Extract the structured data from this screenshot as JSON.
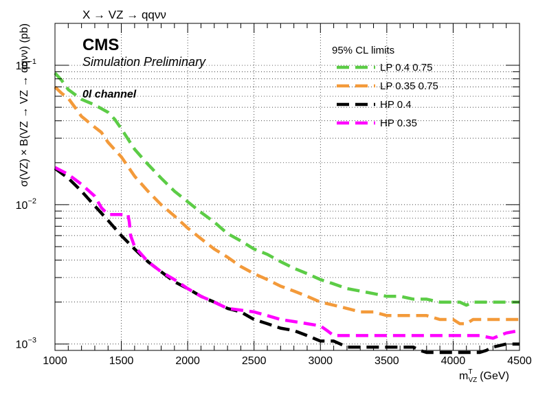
{
  "chart_data": {
    "type": "line",
    "title": "X → VZ → qqνν",
    "xlabel": "m_VZ^T (GeV)",
    "xlabel_main": "m",
    "xlabel_sup": "T",
    "xlabel_sub": "VZ",
    "xlabel_unit": "(GeV)",
    "ylabel": "σ(VZ) × B(VZ → VZ → qqνν) (pb)",
    "xlim": [
      1000,
      4500
    ],
    "ylim": [
      0.0009,
      0.2
    ],
    "yscale": "log",
    "grid": true,
    "x_ticks": [
      1000,
      1500,
      2000,
      2500,
      3000,
      3500,
      4000,
      4500
    ],
    "y_tick_labels": [
      {
        "value": 0.1,
        "mantissa": "10",
        "exp": "−1"
      },
      {
        "value": 0.01,
        "mantissa": "10",
        "exp": "−2"
      },
      {
        "value": 0.001,
        "mantissa": "10",
        "exp": "−3"
      }
    ],
    "annotations": {
      "experiment": "CMS",
      "status": "Simulation Preliminary",
      "channel": "0l channel"
    },
    "legend": {
      "header": "95% CL limits",
      "position": "top-right"
    },
    "series": [
      {
        "name": "LP 0.4 0.75",
        "color": "#5ccc46",
        "x": [
          1000,
          1050,
          1100,
          1200,
          1300,
          1400,
          1450,
          1500,
          1600,
          1700,
          1800,
          1900,
          2000,
          2100,
          2200,
          2300,
          2400,
          2500,
          2600,
          2700,
          2800,
          2900,
          3000,
          3100,
          3200,
          3300,
          3400,
          3500,
          3600,
          3700,
          3800,
          3900,
          4000,
          4050,
          4100,
          4150,
          4200,
          4300,
          4400,
          4500
        ],
        "y": [
          0.088,
          0.078,
          0.067,
          0.057,
          0.052,
          0.046,
          0.041,
          0.035,
          0.025,
          0.0195,
          0.0155,
          0.0125,
          0.0105,
          0.0088,
          0.0075,
          0.0062,
          0.0055,
          0.0048,
          0.0044,
          0.0039,
          0.0035,
          0.0032,
          0.0029,
          0.0027,
          0.0025,
          0.0024,
          0.0023,
          0.0022,
          0.0022,
          0.0021,
          0.0021,
          0.002,
          0.002,
          0.002,
          0.0019,
          0.002,
          0.002,
          0.002,
          0.002,
          0.002
        ]
      },
      {
        "name": "LP 0.35 0.75",
        "color": "#f39a3a",
        "x": [
          1000,
          1050,
          1100,
          1150,
          1200,
          1300,
          1350,
          1400,
          1500,
          1600,
          1700,
          1800,
          1900,
          2000,
          2100,
          2200,
          2300,
          2400,
          2500,
          2600,
          2700,
          2800,
          2900,
          3000,
          3100,
          3200,
          3300,
          3400,
          3500,
          3600,
          3700,
          3800,
          3900,
          4000,
          4050,
          4100,
          4150,
          4200,
          4300,
          4400,
          4500
        ],
        "y": [
          0.07,
          0.063,
          0.058,
          0.05,
          0.043,
          0.036,
          0.033,
          0.028,
          0.022,
          0.016,
          0.0125,
          0.01,
          0.0083,
          0.0068,
          0.0057,
          0.0048,
          0.0042,
          0.0036,
          0.0032,
          0.0029,
          0.0026,
          0.0024,
          0.0022,
          0.002,
          0.0019,
          0.0018,
          0.0017,
          0.0017,
          0.0016,
          0.0016,
          0.0016,
          0.0016,
          0.0015,
          0.0015,
          0.0014,
          0.0014,
          0.0015,
          0.0015,
          0.0015,
          0.0015,
          0.0015
        ]
      },
      {
        "name": "HP 0.4",
        "color": "#000000",
        "x": [
          1000,
          1100,
          1200,
          1300,
          1400,
          1500,
          1600,
          1700,
          1800,
          1900,
          2000,
          2100,
          2200,
          2300,
          2400,
          2500,
          2600,
          2700,
          2800,
          2900,
          3000,
          3050,
          3100,
          3150,
          3200,
          3250,
          3300,
          3400,
          3500,
          3600,
          3700,
          3750,
          3800,
          3850,
          3900,
          4000,
          4100,
          4150,
          4200,
          4250,
          4300,
          4400,
          4500
        ],
        "y": [
          0.0182,
          0.0155,
          0.0125,
          0.0098,
          0.0077,
          0.006,
          0.0048,
          0.0039,
          0.0033,
          0.0028,
          0.0025,
          0.0022,
          0.002,
          0.0018,
          0.0017,
          0.0015,
          0.0014,
          0.0013,
          0.00125,
          0.00115,
          0.00105,
          0.00105,
          0.00105,
          0.001,
          0.00095,
          0.00095,
          0.00095,
          0.00095,
          0.00095,
          0.00095,
          0.00095,
          0.0009,
          0.00087,
          0.00087,
          0.00087,
          0.00087,
          0.00087,
          0.00087,
          0.00087,
          0.0009,
          0.00095,
          0.001,
          0.001
        ]
      },
      {
        "name": "HP 0.35",
        "color": "#ff00ff",
        "x": [
          1000,
          1100,
          1200,
          1300,
          1350,
          1400,
          1450,
          1500,
          1550,
          1560,
          1570,
          1600,
          1700,
          1800,
          1900,
          2000,
          2100,
          2200,
          2300,
          2400,
          2500,
          2600,
          2700,
          2800,
          2900,
          3000,
          3050,
          3100,
          3200,
          3300,
          3400,
          3500,
          3600,
          3700,
          3800,
          3900,
          4000,
          4100,
          4200,
          4300,
          4350,
          4400,
          4500
        ],
        "y": [
          0.0185,
          0.0165,
          0.014,
          0.0115,
          0.0095,
          0.0085,
          0.0085,
          0.0085,
          0.0085,
          0.0075,
          0.006,
          0.005,
          0.0039,
          0.0033,
          0.0029,
          0.0025,
          0.0022,
          0.002,
          0.0018,
          0.00175,
          0.0017,
          0.0016,
          0.0015,
          0.00145,
          0.0014,
          0.00135,
          0.00125,
          0.00115,
          0.00115,
          0.00115,
          0.00115,
          0.00115,
          0.00115,
          0.00115,
          0.00115,
          0.00115,
          0.00115,
          0.00115,
          0.00115,
          0.0011,
          0.00115,
          0.0012,
          0.00125
        ]
      }
    ]
  }
}
